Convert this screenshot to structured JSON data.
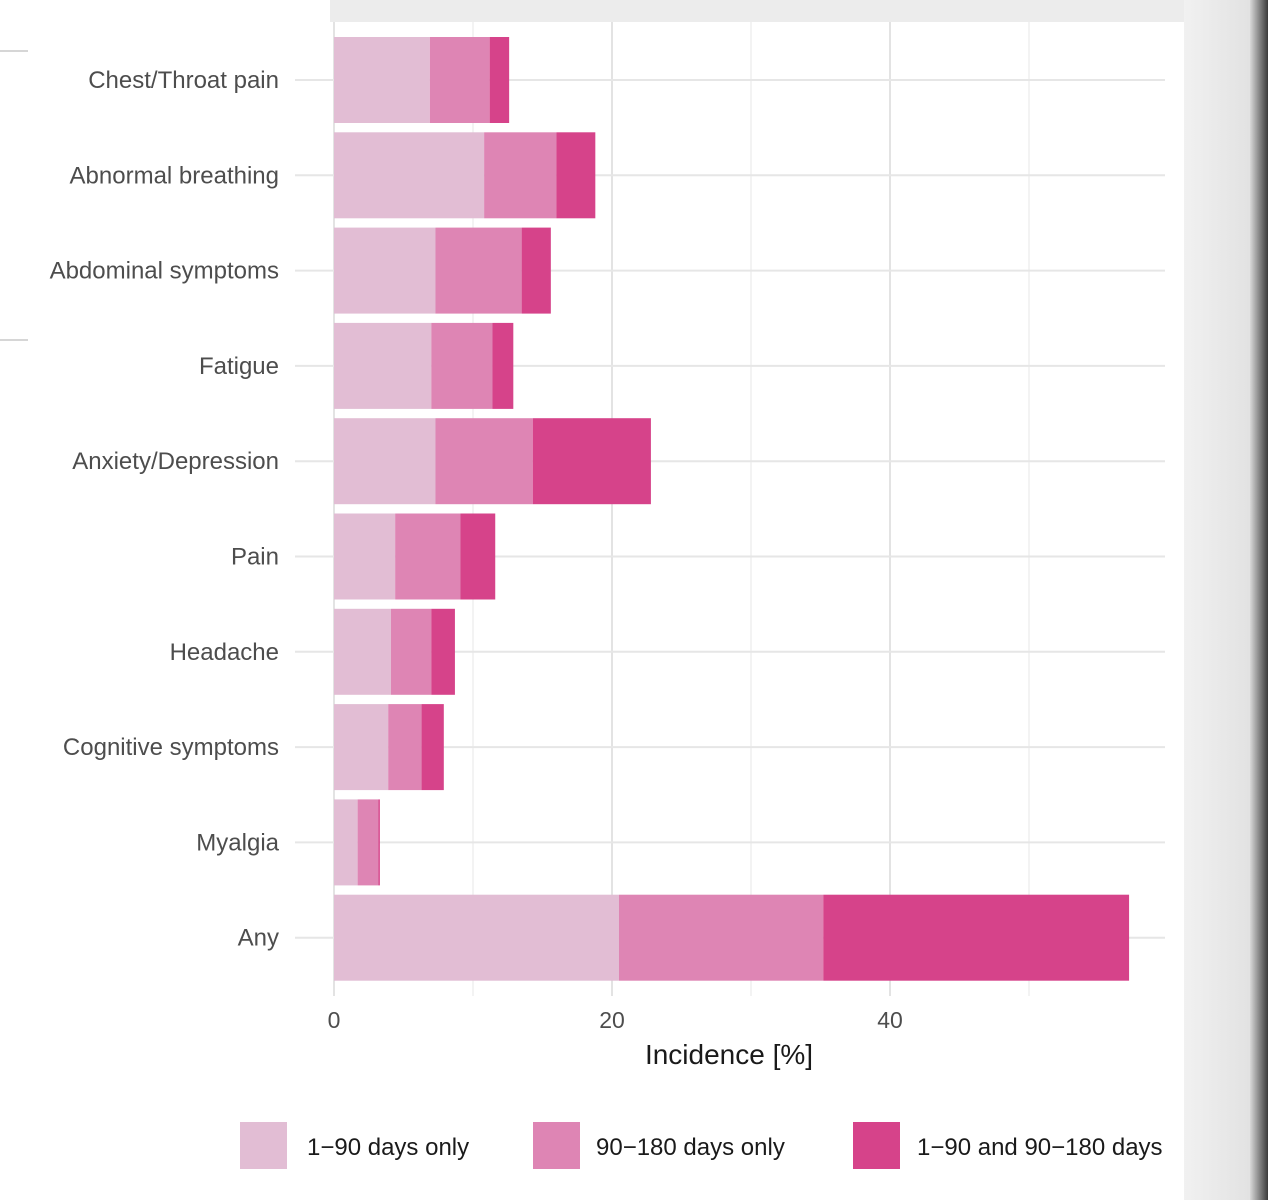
{
  "chart_data": {
    "type": "bar",
    "orientation": "horizontal",
    "stacked": true,
    "categories": [
      "Chest/Throat pain",
      "Abnormal breathing",
      "Abdominal symptoms",
      "Fatigue",
      "Anxiety/Depression",
      "Pain",
      "Headache",
      "Cognitive symptoms",
      "Myalgia",
      "Any"
    ],
    "series": [
      {
        "name": "1−90 days only",
        "color": "#e2bdd4",
        "values": [
          6.9,
          10.8,
          7.3,
          7.0,
          7.3,
          4.4,
          4.1,
          3.9,
          1.7,
          20.5
        ]
      },
      {
        "name": "90−180 days only",
        "color": "#de85b4",
        "values": [
          4.3,
          5.2,
          6.2,
          4.4,
          7.0,
          4.7,
          2.9,
          2.4,
          1.5,
          14.7
        ]
      },
      {
        "name": "1−90 and 90−180 days",
        "color": "#d6438a",
        "values": [
          1.4,
          2.8,
          2.1,
          1.5,
          8.5,
          2.5,
          1.7,
          1.6,
          0.1,
          22.0
        ]
      }
    ],
    "xlabel": "Incidence [%]",
    "ylabel": "",
    "xlim": [
      0,
      60
    ],
    "xticks": [
      0,
      20,
      40
    ],
    "grid": true,
    "legend": "bottom"
  }
}
